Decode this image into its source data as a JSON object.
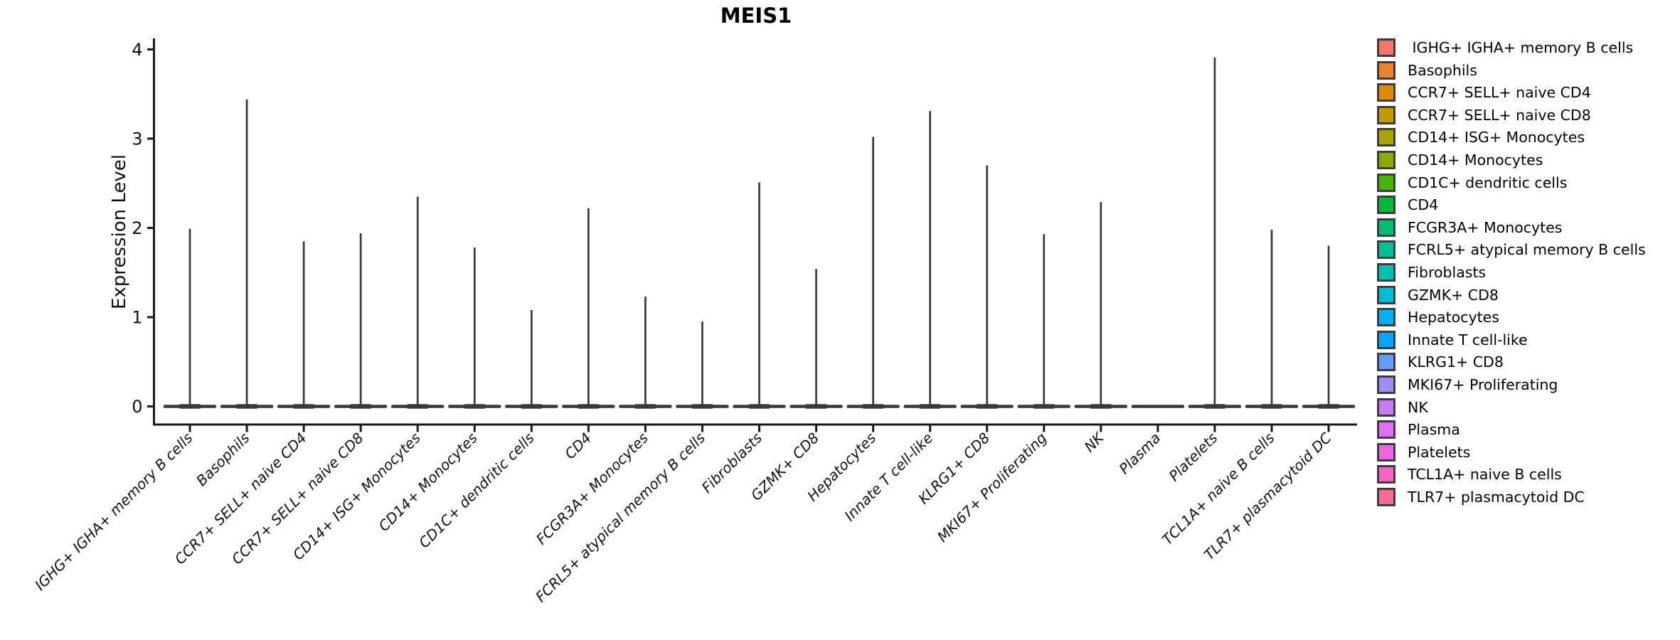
{
  "chart_data": {
    "type": "violin",
    "title": "MEIS1",
    "ylabel": "Expression Level",
    "xlabel": "",
    "ylim": [
      0,
      4
    ],
    "yticks": [
      0,
      1,
      2,
      3,
      4
    ],
    "grid": false,
    "legend_position": "right",
    "background_color": "#ffffff",
    "axis_color": "#1a1a1a",
    "violin_color": "#3a3a3a",
    "x_tick_label_style": "italic",
    "x_tick_label_rotation_deg": 45,
    "categories": [
      "IGHG+ IGHA+ memory B cells",
      "Basophils",
      "CCR7+ SELL+ naive CD4",
      "CCR7+ SELL+ naive CD8",
      "CD14+ ISG+ Monocytes",
      "CD14+ Monocytes",
      "CD1C+ dendritic cells",
      "CD4",
      "FCGR3A+ Monocytes",
      "FCRL5+ atypical memory B cells",
      "Fibroblasts",
      "GZMK+ CD8",
      "Hepatocytes",
      "Innate T cell-like",
      "KLRG1+ CD8",
      "MKI67+ Proliferating",
      "NK",
      "Plasma",
      "Platelets",
      "TCL1A+ naive B cells",
      "TLR7+ plasmacytoid DC"
    ],
    "series": [
      {
        "name": " IGHG+ IGHA+ memory B cells",
        "color": "#F8766D",
        "max_expression": 1.99
      },
      {
        "name": "Basophils",
        "color": "#EA8331",
        "max_expression": 3.44
      },
      {
        "name": "CCR7+ SELL+ naive CD4",
        "color": "#DE8C00",
        "max_expression": 1.85
      },
      {
        "name": "CCR7+ SELL+ naive CD8",
        "color": "#C49A00",
        "max_expression": 1.94
      },
      {
        "name": "CD14+ ISG+ Monocytes",
        "color": "#A9A400",
        "max_expression": 2.35
      },
      {
        "name": "CD14+ Monocytes",
        "color": "#8CAB00",
        "max_expression": 1.78
      },
      {
        "name": "CD1C+ dendritic cells",
        "color": "#45B500",
        "max_expression": 1.08
      },
      {
        "name": "CD4",
        "color": "#00BA38",
        "max_expression": 2.22
      },
      {
        "name": "FCGR3A+ Monocytes",
        "color": "#00BD74",
        "max_expression": 1.23
      },
      {
        "name": "FCRL5+ atypical memory B cells",
        "color": "#00C096",
        "max_expression": 0.95
      },
      {
        "name": "Fibroblasts",
        "color": "#00C1B2",
        "max_expression": 2.51
      },
      {
        "name": "GZMK+ CD8",
        "color": "#00BDD2",
        "max_expression": 1.54
      },
      {
        "name": "Hepatocytes",
        "color": "#00B2F3",
        "max_expression": 3.02
      },
      {
        "name": "Innate T cell-like",
        "color": "#00A5FF",
        "max_expression": 3.31
      },
      {
        "name": "KLRG1+ CD8",
        "color": "#619CFF",
        "max_expression": 2.7
      },
      {
        "name": "MKI67+ Proliferating",
        "color": "#9F8CFF",
        "max_expression": 1.93
      },
      {
        "name": "NK",
        "color": "#C77CFF",
        "max_expression": 2.29
      },
      {
        "name": "Plasma",
        "color": "#E36EF6",
        "max_expression": 0.0
      },
      {
        "name": "Platelets",
        "color": "#F563DF",
        "max_expression": 3.91
      },
      {
        "name": "TCL1A+ naive B cells",
        "color": "#FF61C7",
        "max_expression": 1.98
      },
      {
        "name": "TLR7+ plasmacytoid DC",
        "color": "#FF6B94",
        "max_expression": 1.8
      }
    ]
  }
}
